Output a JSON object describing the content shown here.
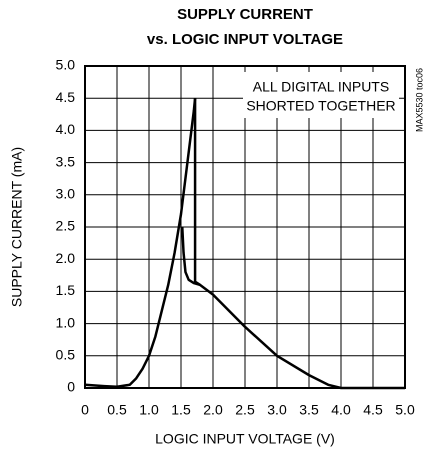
{
  "chart_data": {
    "type": "line",
    "title": [
      "SUPPLY CURRENT",
      "vs. LOGIC INPUT VOLTAGE"
    ],
    "xlabel": "LOGIC INPUT VOLTAGE (V)",
    "ylabel": "SUPPLY CURRENT (mA)",
    "annotation": [
      "ALL DIGITAL INPUTS",
      "SHORTED TOGETHER"
    ],
    "side_note": "MAX5530 toc06",
    "xlim": [
      0,
      5
    ],
    "ylim": [
      0,
      5
    ],
    "xticks": [
      0,
      0.5,
      {
        "value": 1,
        "label": "1.0"
      },
      1.5,
      {
        "value": 2,
        "label": "2.0"
      },
      2.5,
      {
        "value": 3,
        "label": "3.0"
      },
      3.5,
      {
        "value": 4,
        "label": "4.0"
      },
      4.5,
      {
        "value": 5,
        "label": "5.0"
      }
    ],
    "yticks": [
      0,
      0.5,
      {
        "value": 1,
        "label": "1.0"
      },
      1.5,
      {
        "value": 2,
        "label": "2.0"
      },
      2.5,
      {
        "value": 3,
        "label": "3.0"
      },
      3.5,
      {
        "value": 4,
        "label": "4.0"
      },
      4.5,
      {
        "value": 5,
        "label": "5.0"
      }
    ],
    "grid": true,
    "series": [
      {
        "color": "#000000",
        "x": [
          0,
          0.3,
          0.5,
          0.7,
          0.8,
          0.9,
          1.0,
          1.1,
          1.2,
          1.3,
          1.4,
          1.5,
          1.6,
          1.7,
          1.72
        ],
        "values": [
          0.05,
          0.03,
          0.02,
          0.05,
          0.15,
          0.3,
          0.5,
          0.8,
          1.2,
          1.6,
          2.1,
          2.7,
          3.5,
          4.3,
          4.5
        ]
      },
      {
        "color": "#000000",
        "x": [
          1.72,
          1.72,
          1.8,
          2.0,
          2.5,
          3.0,
          3.5,
          3.8,
          4.0,
          4.5,
          5.0
        ],
        "values": [
          4.5,
          1.65,
          1.6,
          1.45,
          0.95,
          0.5,
          0.2,
          0.05,
          0,
          0,
          0
        ]
      },
      {
        "color": "#000000",
        "x": [
          1.52,
          1.54,
          1.57,
          1.62,
          1.7,
          1.8
        ],
        "values": [
          2.5,
          2.1,
          1.8,
          1.68,
          1.63,
          1.6
        ]
      }
    ]
  }
}
